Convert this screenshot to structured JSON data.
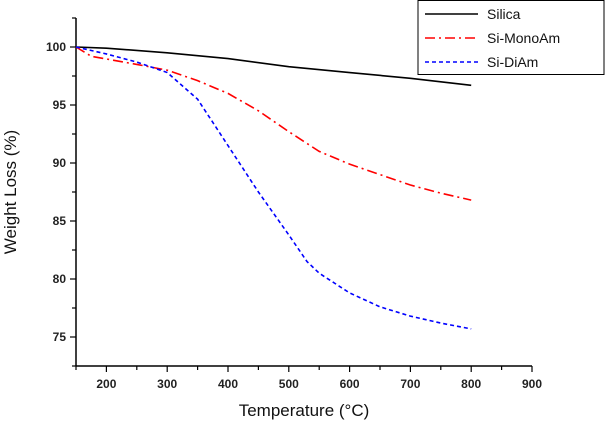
{
  "chart_data": {
    "type": "line",
    "title": "",
    "xlabel": "Temperature (°C)",
    "ylabel": "Weight Loss (%)",
    "xlim": [
      150,
      900
    ],
    "ylim": [
      72.5,
      102.5
    ],
    "xticks": [
      200,
      300,
      400,
      500,
      600,
      700,
      800,
      900
    ],
    "yticks": [
      75,
      80,
      85,
      90,
      95,
      100
    ],
    "grid": false,
    "legend_position": "top-right",
    "series": [
      {
        "name": "Silica",
        "color": "#000000",
        "style": "solid",
        "x": [
          150,
          200,
          300,
          400,
          500,
          600,
          700,
          800
        ],
        "y": [
          100,
          99.9,
          99.5,
          99.0,
          98.3,
          97.8,
          97.3,
          96.7
        ]
      },
      {
        "name": "Si-MonoAm",
        "color": "#ff0000",
        "style": "dash-dot",
        "x": [
          150,
          175,
          250,
          300,
          350,
          400,
          450,
          500,
          550,
          600,
          650,
          700,
          750,
          800
        ],
        "y": [
          100,
          99.2,
          98.5,
          98.0,
          97.1,
          96.0,
          94.5,
          92.7,
          91.0,
          89.9,
          89.0,
          88.1,
          87.4,
          86.8
        ]
      },
      {
        "name": "Si-DiAm",
        "color": "#0000ff",
        "style": "dash",
        "x": [
          150,
          200,
          250,
          300,
          350,
          400,
          450,
          500,
          530,
          550,
          600,
          650,
          700,
          750,
          800
        ],
        "y": [
          100,
          99.4,
          98.7,
          97.8,
          95.5,
          91.5,
          87.5,
          83.8,
          81.5,
          80.5,
          78.8,
          77.6,
          76.8,
          76.2,
          75.7
        ]
      }
    ]
  }
}
